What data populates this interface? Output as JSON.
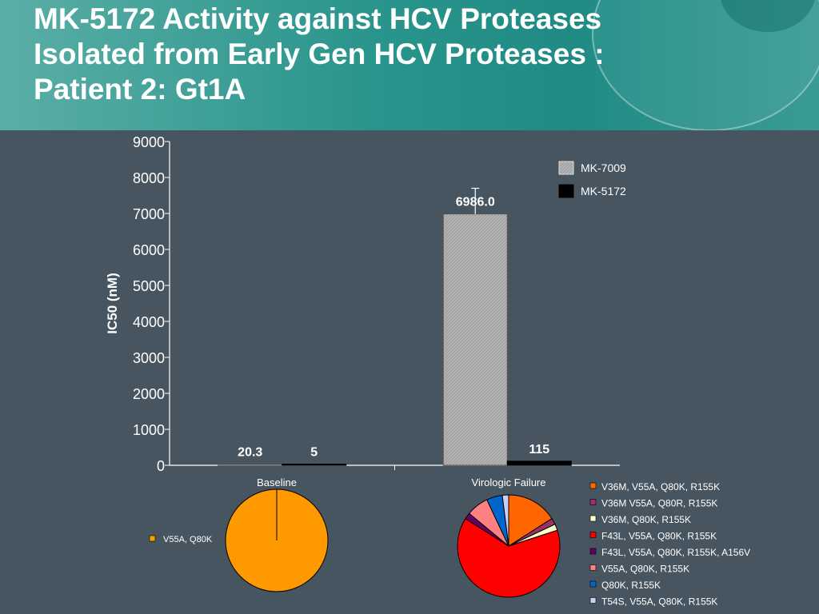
{
  "title": {
    "line1": "MK-5172 Activity against HCV Proteases",
    "line2": "Isolated from Early Gen HCV Proteases :",
    "line3": "Patient 2: Gt1A"
  },
  "chart_data": [
    {
      "type": "bar",
      "categories": [
        "Baseline",
        "Virologic Failure"
      ],
      "series": [
        {
          "name": "MK-7009",
          "values": [
            20.3,
            6986.0
          ],
          "labels": [
            "20.3",
            "6986.0"
          ],
          "color": "#b8b8b8"
        },
        {
          "name": "MK-5172",
          "values": [
            5,
            115
          ],
          "labels": [
            "5",
            "115"
          ],
          "color": "#000000"
        }
      ],
      "error_bar": {
        "category": "Virologic Failure",
        "series": "MK-7009",
        "upper": 7700
      },
      "ylabel": "IC50 (nM)",
      "ylim": [
        0,
        9000
      ],
      "yticks": [
        0,
        1000,
        2000,
        3000,
        4000,
        5000,
        6000,
        7000,
        8000,
        9000
      ],
      "legend": "top-right"
    },
    {
      "type": "pie",
      "title": "Baseline",
      "slices": [
        {
          "label": "V55A, Q80K",
          "value": 100,
          "color": "#ff9900"
        }
      ]
    },
    {
      "type": "pie",
      "title": "Virologic Failure",
      "slices": [
        {
          "label": "V36M, V55A, Q80K, R155K",
          "value": 16,
          "color": "#ff6600"
        },
        {
          "label": "V36M V55A, Q80R, R155K",
          "value": 2,
          "color": "#993366"
        },
        {
          "label": "V36M, Q80K, R155K",
          "value": 2,
          "color": "#ffffcc"
        },
        {
          "label": "F43L, V55A, Q80K, R155K",
          "value": 64,
          "color": "#ff0000"
        },
        {
          "label": "F43L, V55A, Q80K, R155K, A156V",
          "value": 2,
          "color": "#660066"
        },
        {
          "label": "V55A, Q80K, R155K",
          "value": 7,
          "color": "#ff8080"
        },
        {
          "label": "Q80K, R155K",
          "value": 5,
          "color": "#0066cc"
        },
        {
          "label": "T54S, V55A, Q80K, R155K",
          "value": 2,
          "color": "#ccccff"
        }
      ]
    }
  ]
}
